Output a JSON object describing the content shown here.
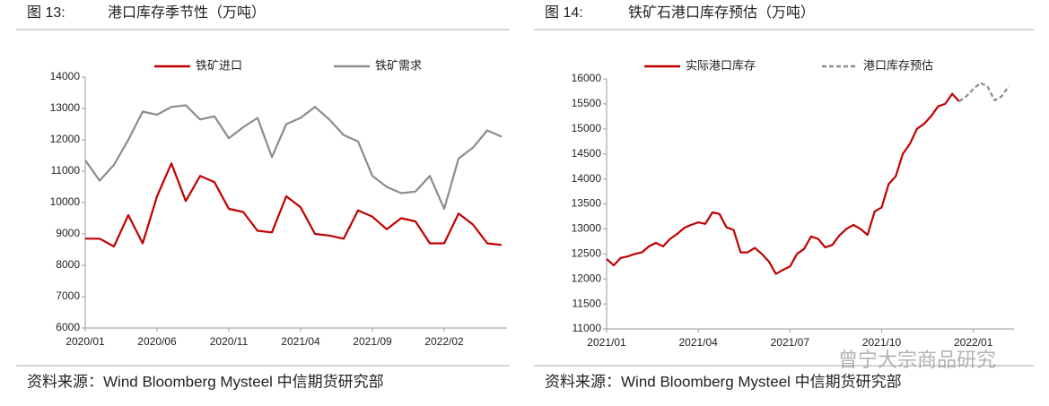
{
  "chart_data": [
    {
      "type": "line",
      "label": "图 13:",
      "title": "港口库存季节性（万吨）",
      "categories": [
        "2020/01",
        null,
        null,
        null,
        null,
        "2020/06",
        null,
        null,
        null,
        null,
        "2020/11",
        null,
        null,
        null,
        null,
        "2021/04",
        null,
        null,
        null,
        null,
        "2021/09",
        null,
        null,
        null,
        null,
        "2022/02",
        null,
        null,
        null,
        null
      ],
      "series": [
        {
          "name": "铁矿进口",
          "color": "#c00000",
          "values": [
            8850,
            8850,
            8600,
            9600,
            8700,
            10200,
            11250,
            10050,
            10850,
            10650,
            9800,
            9700,
            9100,
            9050,
            10200,
            9850,
            9000,
            8950,
            8850,
            9750,
            9550,
            9150,
            9500,
            9400,
            8700,
            8700,
            9650,
            9300,
            8700,
            8650
          ]
        },
        {
          "name": "铁矿需求",
          "color": "#8c8c8c",
          "values": [
            11350,
            10700,
            11200,
            12000,
            12900,
            12800,
            13050,
            13100,
            12650,
            12750,
            12050,
            12400,
            12700,
            11450,
            12500,
            12700,
            13050,
            12650,
            12150,
            11950,
            10850,
            10500,
            10300,
            10350,
            10850,
            9800,
            11400,
            11750,
            12300,
            12100
          ]
        }
      ],
      "ylim": [
        6000,
        14000
      ],
      "yticks": [
        6000,
        7000,
        8000,
        9000,
        10000,
        11000,
        12000,
        13000,
        14000
      ],
      "legend": "top",
      "source": "资料来源：Wind Bloomberg Mysteel 中信期货研究部"
    },
    {
      "type": "line",
      "label": "图 14:",
      "title": "铁矿石港口库存预估（万吨）",
      "categories": [
        "2021/01",
        null,
        null,
        null,
        null,
        null,
        null,
        null,
        null,
        null,
        null,
        null,
        null,
        "2021/04",
        null,
        null,
        null,
        null,
        null,
        null,
        null,
        null,
        null,
        null,
        null,
        null,
        "2021/07",
        null,
        null,
        null,
        null,
        null,
        null,
        null,
        null,
        null,
        null,
        null,
        null,
        "2021/10",
        null,
        null,
        null,
        null,
        null,
        null,
        null,
        null,
        null,
        null,
        null,
        null,
        "2022/01",
        null,
        null,
        null,
        null,
        null
      ],
      "series": [
        {
          "name": "实际港口库存",
          "color": "#c00000",
          "dashed": false,
          "values": [
            12400,
            12270,
            12420,
            12450,
            12500,
            12530,
            12650,
            12720,
            12650,
            12800,
            12900,
            13020,
            13080,
            13130,
            13100,
            13330,
            13300,
            13030,
            12980,
            12530,
            12530,
            12620,
            12500,
            12350,
            12100,
            12180,
            12250,
            12500,
            12600,
            12850,
            12800,
            12630,
            12680,
            12870,
            13000,
            13080,
            13000,
            12880,
            13350,
            13430,
            13900,
            14050,
            14500,
            14700,
            15000,
            15100,
            15250,
            15450,
            15500,
            15700,
            15550,
            null,
            null,
            null,
            null,
            null,
            null,
            null
          ]
        },
        {
          "name": "港口库存预估",
          "color": "#8c8c8c",
          "dashed": true,
          "values": [
            null,
            null,
            null,
            null,
            null,
            null,
            null,
            null,
            null,
            null,
            null,
            null,
            null,
            null,
            null,
            null,
            null,
            null,
            null,
            null,
            null,
            null,
            null,
            null,
            null,
            null,
            null,
            null,
            null,
            null,
            null,
            null,
            null,
            null,
            null,
            null,
            null,
            null,
            null,
            null,
            null,
            null,
            null,
            null,
            null,
            null,
            null,
            null,
            null,
            null,
            15550,
            15650,
            15800,
            15920,
            15850,
            15570,
            15650,
            15850
          ]
        }
      ],
      "ylim": [
        11000,
        16000
      ],
      "yticks": [
        11000,
        11500,
        12000,
        12500,
        13000,
        13500,
        14000,
        14500,
        15000,
        15500,
        16000
      ],
      "legend": "top",
      "source": "资料来源：Wind Bloomberg Mysteel 中信期货研究部"
    }
  ],
  "watermark": "曾宁大宗商品研究"
}
